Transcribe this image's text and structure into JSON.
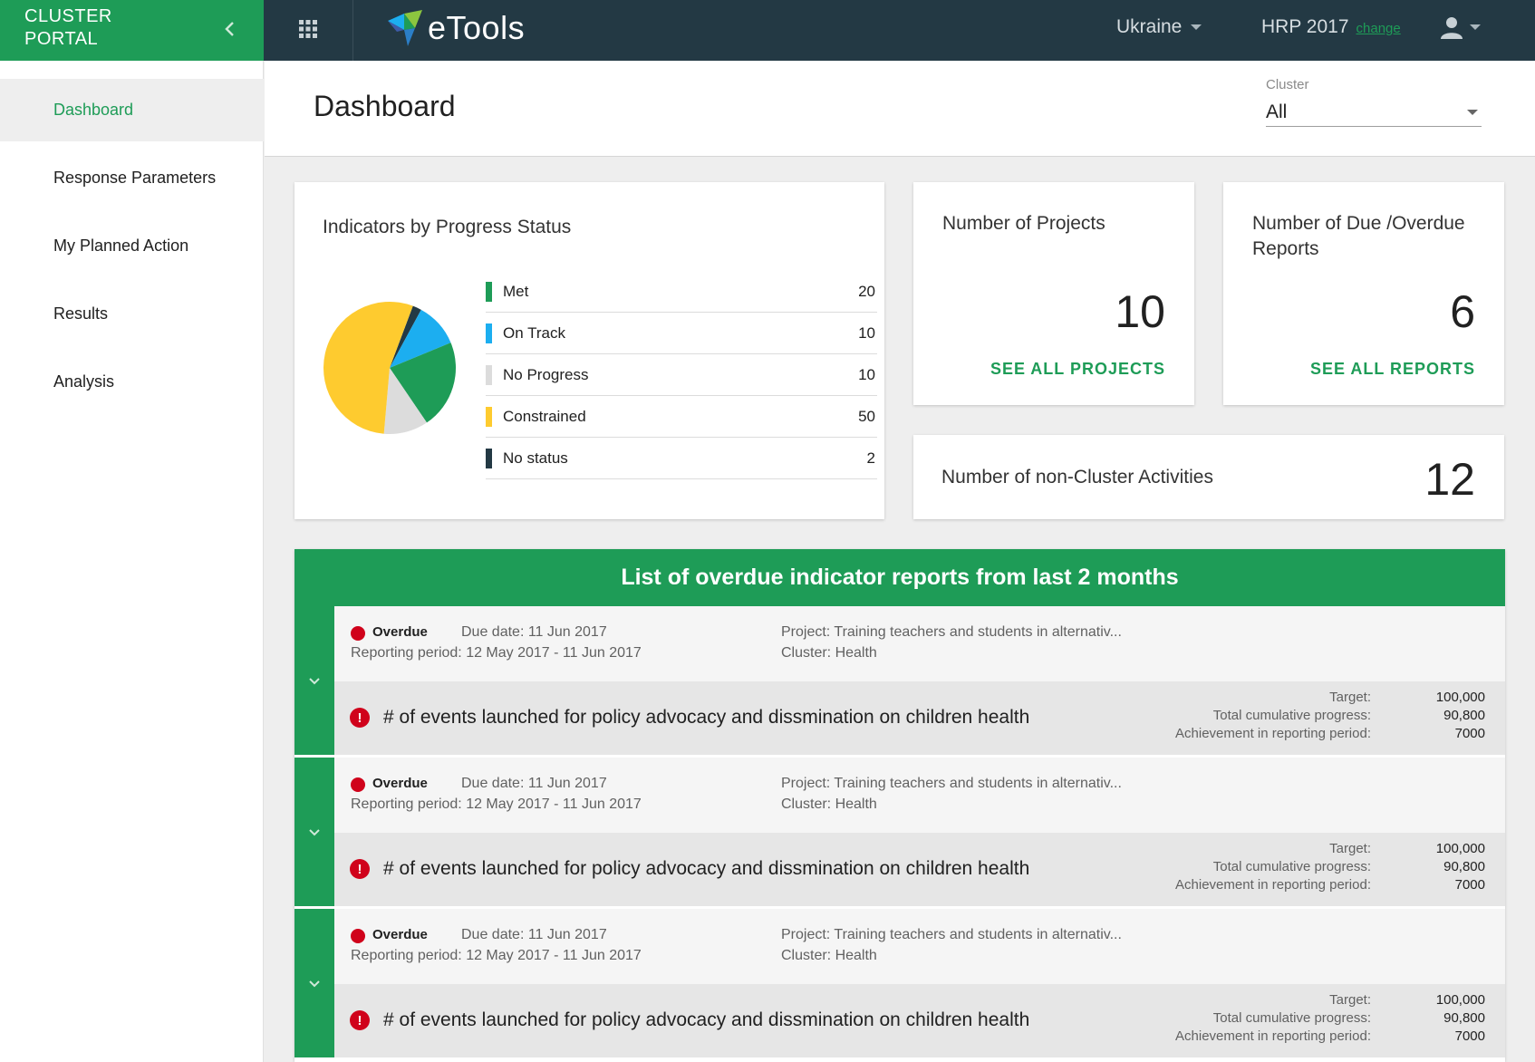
{
  "brand": {
    "title": "CLUSTER PORTAL"
  },
  "header": {
    "logo_text": "eTools",
    "country": "Ukraine",
    "plan": "HRP 2017",
    "plan_change": "change"
  },
  "sidebar": {
    "items": [
      {
        "label": "Dashboard"
      },
      {
        "label": "Response Parameters"
      },
      {
        "label": "My Planned Action"
      },
      {
        "label": "Results"
      },
      {
        "label": "Analysis"
      }
    ]
  },
  "page": {
    "title": "Dashboard",
    "cluster_label": "Cluster",
    "cluster_value": "All"
  },
  "colors": {
    "brand_green": "#1e9c57",
    "topbar": "#233944",
    "overdue_red": "#d0021b"
  },
  "chart_data": {
    "type": "pie",
    "title": "Indicators by Progress Status",
    "categories": [
      "Met",
      "On Track",
      "No Progress",
      "Constrained",
      "No status"
    ],
    "values": [
      20,
      10,
      10,
      50,
      2
    ],
    "colors": [
      "#1e9c57",
      "#1caef0",
      "#dcdcdc",
      "#fecb2f",
      "#233944"
    ]
  },
  "stats": {
    "projects_title": "Number of Projects",
    "projects_value": "10",
    "projects_link": "SEE ALL PROJECTS",
    "reports_title": "Number of Due /Overdue Reports",
    "reports_value": "6",
    "reports_link": "SEE ALL REPORTS",
    "noncluster_title": "Number of non-Cluster Activities",
    "noncluster_value": "12"
  },
  "overdue": {
    "title": "List of overdue indicator reports from last 2 months",
    "reports": [
      {
        "status": "Overdue",
        "due": "Due date: 11 Jun 2017",
        "period": "Reporting period: 12 May 2017 - 11 Jun 2017",
        "project": "Project: Training teachers and students in alternativ...",
        "cluster": "Cluster: Health",
        "indicator": "# of events launched for policy advocacy and dissmination on children health",
        "target_label": "Target:",
        "target": "100,000",
        "progress_label": "Total cumulative progress:",
        "progress": "90,800",
        "achievement_label": "Achievement in reporting period:",
        "achievement": "7000"
      },
      {
        "status": "Overdue",
        "due": "Due date: 11 Jun 2017",
        "period": "Reporting period: 12 May 2017 - 11 Jun 2017",
        "project": "Project: Training teachers and students in alternativ...",
        "cluster": "Cluster: Health",
        "indicator": "# of events launched for policy advocacy and dissmination on children health",
        "target_label": "Target:",
        "target": "100,000",
        "progress_label": "Total cumulative progress:",
        "progress": "90,800",
        "achievement_label": "Achievement in reporting period:",
        "achievement": "7000"
      },
      {
        "status": "Overdue",
        "due": "Due date: 11 Jun 2017",
        "period": "Reporting period: 12 May 2017 - 11 Jun 2017",
        "project": "Project: Training teachers and students in alternativ...",
        "cluster": "Cluster: Health",
        "indicator": "# of events launched for policy advocacy and dissmination on children health",
        "target_label": "Target:",
        "target": "100,000",
        "progress_label": "Total cumulative progress:",
        "progress": "90,800",
        "achievement_label": "Achievement in reporting period:",
        "achievement": "7000"
      }
    ]
  }
}
